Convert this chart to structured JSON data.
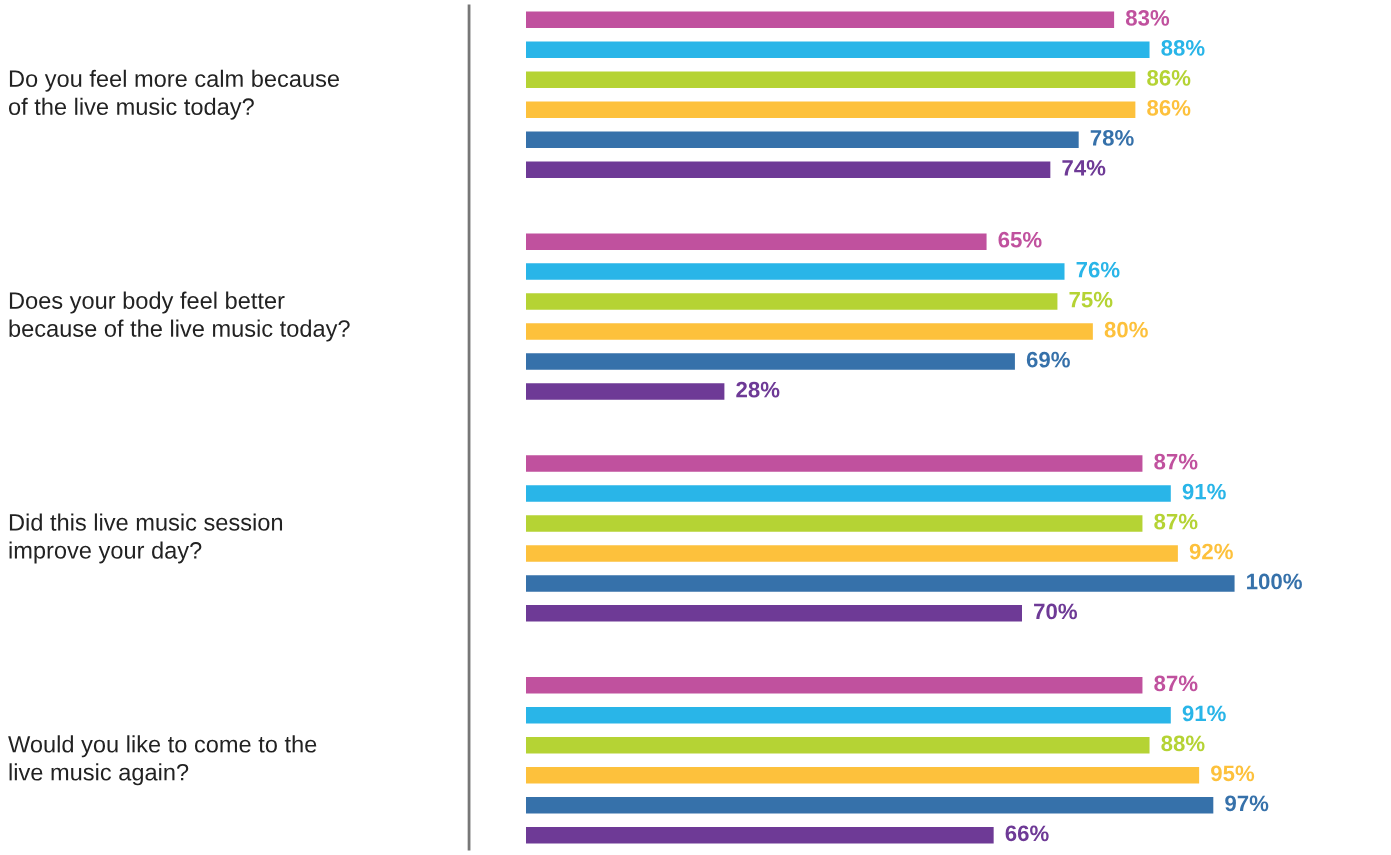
{
  "chart_data": {
    "type": "bar",
    "orientation": "horizontal",
    "categories": [
      "Do you feel more calm because\nof the live music today?",
      "Does your body feel better\nbecause of the live music today?",
      "Did this live music session\nimprove your day?",
      "Would you like to come to the\nlive music again?"
    ],
    "series": [
      {
        "color": "#c0519e",
        "values": [
          83,
          65,
          87,
          87
        ],
        "value_labels": [
          "83%",
          "65%",
          "87%",
          "87%"
        ]
      },
      {
        "color": "#29b5e8",
        "values": [
          88,
          76,
          91,
          91
        ],
        "value_labels": [
          "88%",
          "76%",
          "91%",
          "91%"
        ]
      },
      {
        "color": "#b5d334",
        "values": [
          86,
          75,
          87,
          88
        ],
        "value_labels": [
          "86%",
          "75%",
          "87%",
          "88%"
        ]
      },
      {
        "color": "#fdc13c",
        "values": [
          86,
          80,
          92,
          95
        ],
        "value_labels": [
          "86%",
          "80%",
          "92%",
          "95%"
        ]
      },
      {
        "color": "#3671aa",
        "values": [
          78,
          69,
          100,
          97
        ],
        "value_labels": [
          "78%",
          "69%",
          "100%",
          "97%"
        ]
      },
      {
        "color": "#6e3a96",
        "values": [
          74,
          28,
          70,
          66
        ],
        "value_labels": [
          "74%",
          "28%",
          "70%",
          "66%"
        ]
      }
    ]
  }
}
